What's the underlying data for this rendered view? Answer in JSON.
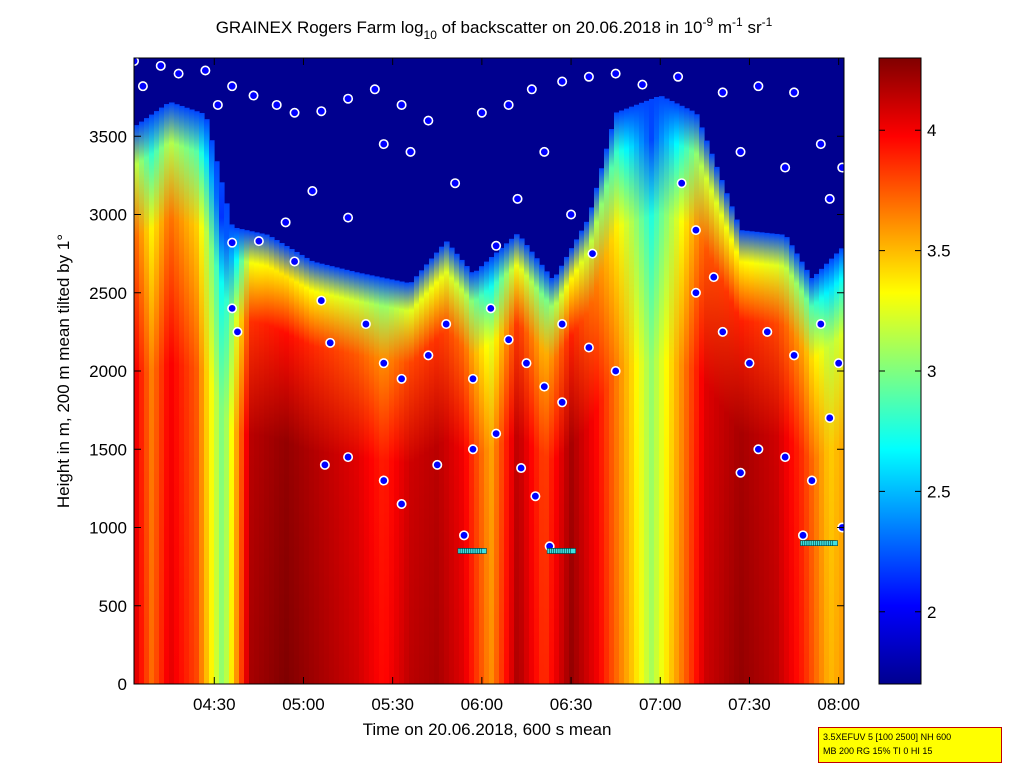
{
  "chart_data": {
    "type": "heatmap",
    "title": {
      "prefix": "GRAINEX Rogers Farm log",
      "prefix_sub": "10",
      "middle": " of backscatter on 20.06.2018 in 10",
      "exp1": "-9",
      "unit_m": " m",
      "exp2": "-1",
      "unit_sr": " sr",
      "exp3": "-1"
    },
    "xlabel": "Time on 20.06.2018, 600 s mean",
    "ylabel": "Height in m, 200 m mean tilted by 1°",
    "x_range_hours": [
      4.05,
      8.03
    ],
    "x_ticks": [
      {
        "label": "04:30",
        "value": 4.5
      },
      {
        "label": "05:00",
        "value": 5.0
      },
      {
        "label": "05:30",
        "value": 5.5
      },
      {
        "label": "06:00",
        "value": 6.0
      },
      {
        "label": "06:30",
        "value": 6.5
      },
      {
        "label": "07:00",
        "value": 7.0
      },
      {
        "label": "07:30",
        "value": 7.5
      },
      {
        "label": "08:00",
        "value": 8.0
      }
    ],
    "ylim": [
      0,
      4000
    ],
    "y_ticks": [
      0,
      500,
      1000,
      1500,
      2000,
      2500,
      3000,
      3500
    ],
    "colormap": "jet",
    "colorbar": {
      "range": [
        1.7,
        4.3
      ],
      "ticks": [
        "2",
        "2.5",
        "3",
        "3.5",
        "4"
      ]
    },
    "background_color": "#00008f",
    "cloud_top_profile": [
      {
        "t": 4.05,
        "h": 3560
      },
      {
        "t": 4.25,
        "h": 3720
      },
      {
        "t": 4.45,
        "h": 3640
      },
      {
        "t": 4.6,
        "h": 2920
      },
      {
        "t": 4.8,
        "h": 2870
      },
      {
        "t": 5.05,
        "h": 2700
      },
      {
        "t": 5.3,
        "h": 2630
      },
      {
        "t": 5.6,
        "h": 2560
      },
      {
        "t": 5.8,
        "h": 2830
      },
      {
        "t": 5.95,
        "h": 2620
      },
      {
        "t": 6.2,
        "h": 2880
      },
      {
        "t": 6.4,
        "h": 2580
      },
      {
        "t": 6.6,
        "h": 2980
      },
      {
        "t": 6.75,
        "h": 3650
      },
      {
        "t": 7.0,
        "h": 3760
      },
      {
        "t": 7.2,
        "h": 3650
      },
      {
        "t": 7.45,
        "h": 2900
      },
      {
        "t": 7.7,
        "h": 2870
      },
      {
        "t": 7.85,
        "h": 2590
      },
      {
        "t": 8.03,
        "h": 2800
      }
    ],
    "intensity_profile": [
      {
        "t": 4.05,
        "v": 4.1
      },
      {
        "t": 4.15,
        "v": 3.7
      },
      {
        "t": 4.25,
        "v": 4.05
      },
      {
        "t": 4.4,
        "v": 3.8
      },
      {
        "t": 4.55,
        "v": 3.0
      },
      {
        "t": 4.7,
        "v": 4.2
      },
      {
        "t": 4.9,
        "v": 4.3
      },
      {
        "t": 5.1,
        "v": 4.2
      },
      {
        "t": 5.3,
        "v": 4.1
      },
      {
        "t": 5.45,
        "v": 3.95
      },
      {
        "t": 5.6,
        "v": 4.15
      },
      {
        "t": 5.75,
        "v": 4.2
      },
      {
        "t": 5.9,
        "v": 4.05
      },
      {
        "t": 6.05,
        "v": 3.6
      },
      {
        "t": 6.2,
        "v": 4.2
      },
      {
        "t": 6.35,
        "v": 3.85
      },
      {
        "t": 6.5,
        "v": 4.25
      },
      {
        "t": 6.65,
        "v": 4.0
      },
      {
        "t": 6.85,
        "v": 3.45
      },
      {
        "t": 6.95,
        "v": 3.1
      },
      {
        "t": 7.1,
        "v": 3.6
      },
      {
        "t": 7.25,
        "v": 4.1
      },
      {
        "t": 7.45,
        "v": 4.25
      },
      {
        "t": 7.65,
        "v": 4.15
      },
      {
        "t": 7.8,
        "v": 3.9
      },
      {
        "t": 7.95,
        "v": 3.5
      },
      {
        "t": 8.03,
        "v": 3.6
      }
    ],
    "cloud_base_markers": [
      {
        "t": 4.05,
        "h": 3980
      },
      {
        "t": 4.1,
        "h": 3820
      },
      {
        "t": 4.2,
        "h": 3950
      },
      {
        "t": 4.3,
        "h": 3900
      },
      {
        "t": 4.45,
        "h": 3920
      },
      {
        "t": 4.52,
        "h": 3700
      },
      {
        "t": 4.6,
        "h": 3820
      },
      {
        "t": 4.72,
        "h": 3760
      },
      {
        "t": 4.85,
        "h": 3700
      },
      {
        "t": 4.95,
        "h": 3650
      },
      {
        "t": 5.1,
        "h": 3660
      },
      {
        "t": 5.25,
        "h": 3740
      },
      {
        "t": 5.4,
        "h": 3800
      },
      {
        "t": 5.55,
        "h": 3700
      },
      {
        "t": 5.7,
        "h": 3600
      },
      {
        "t": 6.0,
        "h": 3650
      },
      {
        "t": 6.15,
        "h": 3700
      },
      {
        "t": 6.28,
        "h": 3800
      },
      {
        "t": 6.45,
        "h": 3850
      },
      {
        "t": 6.6,
        "h": 3880
      },
      {
        "t": 6.75,
        "h": 3900
      },
      {
        "t": 6.9,
        "h": 3830
      },
      {
        "t": 7.1,
        "h": 3880
      },
      {
        "t": 7.35,
        "h": 3780
      },
      {
        "t": 7.55,
        "h": 3820
      },
      {
        "t": 7.75,
        "h": 3780
      },
      {
        "t": 7.9,
        "h": 3450
      },
      {
        "t": 8.02,
        "h": 3300
      },
      {
        "t": 4.6,
        "h": 2820
      },
      {
        "t": 4.75,
        "h": 2830
      },
      {
        "t": 4.9,
        "h": 2950
      },
      {
        "t": 5.05,
        "h": 3150
      },
      {
        "t": 5.25,
        "h": 2980
      },
      {
        "t": 5.45,
        "h": 3450
      },
      {
        "t": 5.6,
        "h": 3400
      },
      {
        "t": 5.85,
        "h": 3200
      },
      {
        "t": 6.08,
        "h": 2800
      },
      {
        "t": 6.2,
        "h": 3100
      },
      {
        "t": 6.35,
        "h": 3400
      },
      {
        "t": 6.5,
        "h": 3000
      },
      {
        "t": 6.62,
        "h": 2750
      },
      {
        "t": 7.12,
        "h": 3200
      },
      {
        "t": 7.2,
        "h": 2900
      },
      {
        "t": 7.3,
        "h": 2600
      },
      {
        "t": 7.45,
        "h": 3400
      },
      {
        "t": 7.7,
        "h": 3300
      },
      {
        "t": 7.95,
        "h": 3100
      },
      {
        "t": 4.6,
        "h": 2400
      },
      {
        "t": 4.63,
        "h": 2250
      },
      {
        "t": 4.95,
        "h": 2700
      },
      {
        "t": 5.1,
        "h": 2450
      },
      {
        "t": 5.15,
        "h": 2180
      },
      {
        "t": 5.35,
        "h": 2300
      },
      {
        "t": 5.45,
        "h": 2050
      },
      {
        "t": 5.55,
        "h": 1950
      },
      {
        "t": 5.7,
        "h": 2100
      },
      {
        "t": 5.8,
        "h": 2300
      },
      {
        "t": 5.95,
        "h": 1950
      },
      {
        "t": 6.05,
        "h": 2400
      },
      {
        "t": 6.15,
        "h": 2200
      },
      {
        "t": 6.25,
        "h": 2050
      },
      {
        "t": 6.35,
        "h": 1900
      },
      {
        "t": 6.45,
        "h": 2300
      },
      {
        "t": 6.6,
        "h": 2150
      },
      {
        "t": 6.75,
        "h": 2000
      },
      {
        "t": 7.2,
        "h": 2500
      },
      {
        "t": 7.35,
        "h": 2250
      },
      {
        "t": 7.5,
        "h": 2050
      },
      {
        "t": 7.6,
        "h": 2250
      },
      {
        "t": 7.75,
        "h": 2100
      },
      {
        "t": 7.9,
        "h": 2300
      },
      {
        "t": 8.0,
        "h": 2050
      },
      {
        "t": 5.12,
        "h": 1400
      },
      {
        "t": 5.25,
        "h": 1450
      },
      {
        "t": 5.45,
        "h": 1300
      },
      {
        "t": 5.55,
        "h": 1150
      },
      {
        "t": 5.75,
        "h": 1400
      },
      {
        "t": 5.95,
        "h": 1500
      },
      {
        "t": 6.08,
        "h": 1600
      },
      {
        "t": 6.22,
        "h": 1380
      },
      {
        "t": 6.3,
        "h": 1200
      },
      {
        "t": 6.45,
        "h": 1800
      },
      {
        "t": 7.45,
        "h": 1350
      },
      {
        "t": 7.55,
        "h": 1500
      },
      {
        "t": 7.7,
        "h": 1450
      },
      {
        "t": 7.85,
        "h": 1300
      },
      {
        "t": 7.95,
        "h": 1700
      },
      {
        "t": 5.9,
        "h": 950
      },
      {
        "t": 6.38,
        "h": 880
      },
      {
        "t": 7.8,
        "h": 950
      },
      {
        "t": 8.02,
        "h": 1000
      }
    ],
    "mixing_layer_markers": [
      {
        "t0": 5.88,
        "t1": 6.02,
        "h": 850
      },
      {
        "t0": 6.38,
        "t1": 6.52,
        "h": 850
      },
      {
        "t0": 7.8,
        "t1": 7.98,
        "h": 900
      }
    ]
  },
  "footnote": {
    "line1": "3.5XEFUV 5 [100 2500] NH 600",
    "line2": "MB 200 RG 15% TI 0 HI 15"
  }
}
